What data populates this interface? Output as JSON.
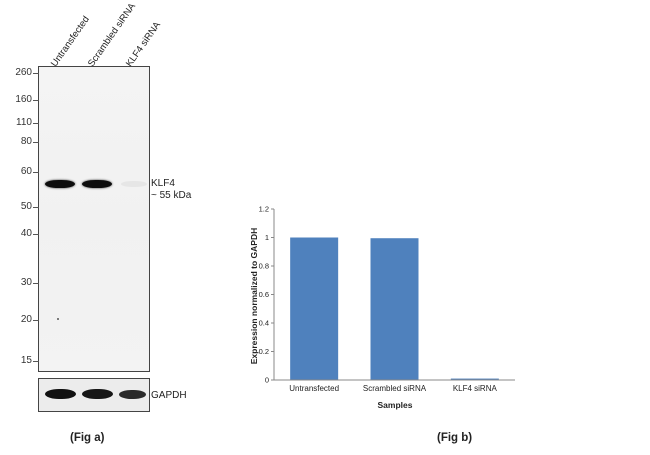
{
  "fig_a": {
    "label": "(Fig a)",
    "lanes": [
      "Untransfected",
      "Scrambled siRNA",
      "KLF4 siRNA"
    ],
    "mw_markers": [
      {
        "label": "260",
        "kda": 260
      },
      {
        "label": "160",
        "kda": 160
      },
      {
        "label": "110",
        "kda": 110
      },
      {
        "label": "80",
        "kda": 80
      },
      {
        "label": "60",
        "kda": 60
      },
      {
        "label": "50",
        "kda": 50
      },
      {
        "label": "40",
        "kda": 40
      },
      {
        "label": "30",
        "kda": 30
      },
      {
        "label": "20",
        "kda": 20
      },
      {
        "label": "15",
        "kda": 15
      }
    ],
    "band_label": {
      "name": "KLF4",
      "size": "~ 55 kDa"
    },
    "loading_control": "GAPDH"
  },
  "fig_b": {
    "label": "(Fig b)"
  },
  "chart_data": {
    "type": "bar",
    "title": "",
    "categories": [
      "Untransfected",
      "Scrambled siRNA",
      "KLF4 siRNA"
    ],
    "values": [
      1.0,
      0.995,
      0.01
    ],
    "xlabel": "Samples",
    "ylabel": "Expression  normalized to GAPDH",
    "ylim": [
      0,
      1.2
    ],
    "yticks": [
      0,
      0.2,
      0.4,
      0.6,
      0.8,
      1,
      1.2
    ],
    "ytick_labels": [
      "0",
      "0.2",
      "0.4",
      "0.6",
      "0.8",
      "1",
      "1.2"
    ],
    "bar_color": "#4f81bd",
    "grid": false,
    "legend": "none"
  }
}
